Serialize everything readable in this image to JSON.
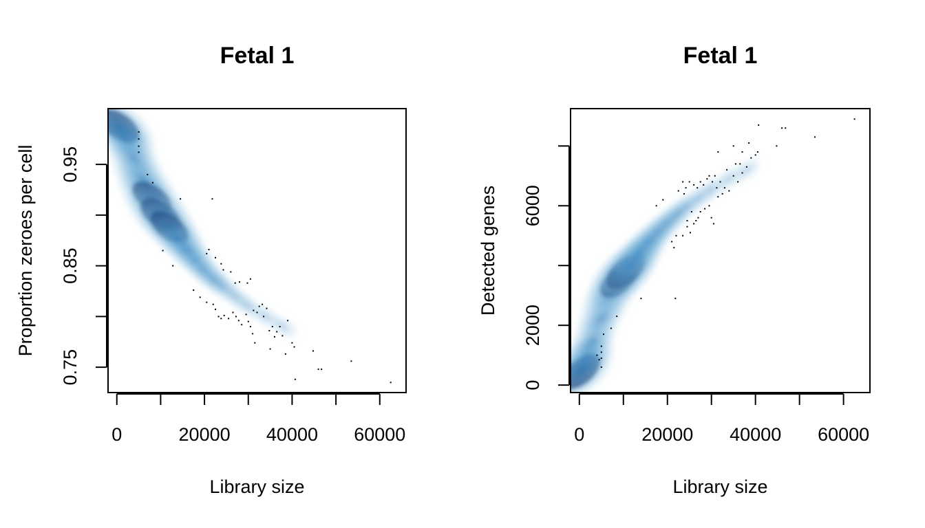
{
  "colors": {
    "density_dark": "#08306b",
    "density_mid": "#2171b5",
    "density_light": "#c6dbef",
    "points": "#000000",
    "axis": "#000000"
  },
  "chart_data": [
    {
      "type": "scatter",
      "style": "smoothScatter",
      "title": "Fetal 1",
      "xlabel": "Library size",
      "ylabel": "Proportion zeroes per cell",
      "xlim": [
        -2000,
        66000
      ],
      "ylim": [
        0.725,
        1.005
      ],
      "xticks": [
        0,
        10000,
        20000,
        30000,
        40000,
        50000,
        60000
      ],
      "xtick_labels": [
        "0",
        "",
        "20000",
        "",
        "40000",
        "",
        "60000"
      ],
      "yticks": [
        0.75,
        0.8,
        0.85,
        0.9,
        0.95
      ],
      "ytick_labels": [
        "0.75",
        "",
        "0.85",
        "",
        "0.95"
      ],
      "density": [
        {
          "x": 500,
          "y": 0.988,
          "w": 1.0
        },
        {
          "x": 2000,
          "y": 0.975,
          "w": 0.8
        },
        {
          "x": 4000,
          "y": 0.955,
          "w": 0.7
        },
        {
          "x": 6000,
          "y": 0.935,
          "w": 0.8
        },
        {
          "x": 8000,
          "y": 0.917,
          "w": 0.95
        },
        {
          "x": 10000,
          "y": 0.9,
          "w": 1.0
        },
        {
          "x": 12000,
          "y": 0.888,
          "w": 0.9
        },
        {
          "x": 14000,
          "y": 0.876,
          "w": 0.7
        },
        {
          "x": 16000,
          "y": 0.865,
          "w": 0.55
        },
        {
          "x": 18000,
          "y": 0.855,
          "w": 0.45
        },
        {
          "x": 20000,
          "y": 0.845,
          "w": 0.35
        },
        {
          "x": 22000,
          "y": 0.837,
          "w": 0.28
        },
        {
          "x": 24000,
          "y": 0.83,
          "w": 0.22
        },
        {
          "x": 27000,
          "y": 0.82,
          "w": 0.15
        },
        {
          "x": 30000,
          "y": 0.81,
          "w": 0.1
        },
        {
          "x": 34000,
          "y": 0.8,
          "w": 0.07
        },
        {
          "x": 38000,
          "y": 0.79,
          "w": 0.05
        }
      ],
      "points": [
        {
          "x": 5000,
          "y": 0.982
        },
        {
          "x": 5000,
          "y": 0.975
        },
        {
          "x": 5000,
          "y": 0.968
        },
        {
          "x": 5000,
          "y": 0.962
        },
        {
          "x": 7000,
          "y": 0.94
        },
        {
          "x": 8200,
          "y": 0.932
        },
        {
          "x": 14500,
          "y": 0.916
        },
        {
          "x": 21800,
          "y": 0.916
        },
        {
          "x": 10500,
          "y": 0.865
        },
        {
          "x": 12800,
          "y": 0.85
        },
        {
          "x": 20500,
          "y": 0.862
        },
        {
          "x": 21000,
          "y": 0.866
        },
        {
          "x": 22500,
          "y": 0.858
        },
        {
          "x": 23800,
          "y": 0.852
        },
        {
          "x": 24300,
          "y": 0.846
        },
        {
          "x": 26000,
          "y": 0.844
        },
        {
          "x": 27000,
          "y": 0.833
        },
        {
          "x": 28000,
          "y": 0.834
        },
        {
          "x": 29800,
          "y": 0.833
        },
        {
          "x": 30500,
          "y": 0.837
        },
        {
          "x": 17500,
          "y": 0.826
        },
        {
          "x": 19000,
          "y": 0.819
        },
        {
          "x": 20500,
          "y": 0.814
        },
        {
          "x": 22000,
          "y": 0.812
        },
        {
          "x": 22500,
          "y": 0.807
        },
        {
          "x": 23200,
          "y": 0.8
        },
        {
          "x": 23800,
          "y": 0.798
        },
        {
          "x": 24500,
          "y": 0.801
        },
        {
          "x": 25500,
          "y": 0.798
        },
        {
          "x": 26500,
          "y": 0.804
        },
        {
          "x": 27200,
          "y": 0.8
        },
        {
          "x": 27800,
          "y": 0.796
        },
        {
          "x": 28500,
          "y": 0.792
        },
        {
          "x": 29500,
          "y": 0.802
        },
        {
          "x": 30000,
          "y": 0.795
        },
        {
          "x": 30500,
          "y": 0.79
        },
        {
          "x": 31200,
          "y": 0.806
        },
        {
          "x": 32000,
          "y": 0.804
        },
        {
          "x": 32500,
          "y": 0.81
        },
        {
          "x": 33200,
          "y": 0.812
        },
        {
          "x": 33500,
          "y": 0.8
        },
        {
          "x": 34200,
          "y": 0.808
        },
        {
          "x": 34800,
          "y": 0.786
        },
        {
          "x": 35500,
          "y": 0.79
        },
        {
          "x": 36000,
          "y": 0.78
        },
        {
          "x": 36500,
          "y": 0.785
        },
        {
          "x": 37200,
          "y": 0.79
        },
        {
          "x": 37800,
          "y": 0.781
        },
        {
          "x": 39000,
          "y": 0.796
        },
        {
          "x": 31000,
          "y": 0.783
        },
        {
          "x": 31500,
          "y": 0.774
        },
        {
          "x": 35000,
          "y": 0.768
        },
        {
          "x": 38500,
          "y": 0.763
        },
        {
          "x": 40000,
          "y": 0.774
        },
        {
          "x": 40500,
          "y": 0.77
        },
        {
          "x": 44800,
          "y": 0.766
        },
        {
          "x": 46000,
          "y": 0.748
        },
        {
          "x": 46700,
          "y": 0.748
        },
        {
          "x": 53500,
          "y": 0.756
        },
        {
          "x": 40700,
          "y": 0.738
        },
        {
          "x": 62500,
          "y": 0.735
        }
      ]
    },
    {
      "type": "scatter",
      "style": "smoothScatter",
      "title": "Fetal 1",
      "xlabel": "Library size",
      "ylabel": "Detected genes",
      "xlim": [
        -2000,
        66000
      ],
      "ylim": [
        -250,
        9250
      ],
      "xticks": [
        0,
        10000,
        20000,
        30000,
        40000,
        50000,
        60000
      ],
      "xtick_labels": [
        "0",
        "",
        "20000",
        "",
        "40000",
        "",
        "60000"
      ],
      "yticks": [
        0,
        2000,
        4000,
        6000,
        8000
      ],
      "ytick_labels": [
        "0",
        "2000",
        "",
        "6000",
        ""
      ],
      "density": [
        {
          "x": 300,
          "y": 450,
          "w": 1.0
        },
        {
          "x": 1500,
          "y": 900,
          "w": 0.75
        },
        {
          "x": 3000,
          "y": 1500,
          "w": 0.6
        },
        {
          "x": 5000,
          "y": 2250,
          "w": 0.65
        },
        {
          "x": 7000,
          "y": 3000,
          "w": 0.8
        },
        {
          "x": 9000,
          "y": 3500,
          "w": 0.95
        },
        {
          "x": 10500,
          "y": 3800,
          "w": 1.0
        },
        {
          "x": 12000,
          "y": 4100,
          "w": 0.85
        },
        {
          "x": 14000,
          "y": 4500,
          "w": 0.65
        },
        {
          "x": 16000,
          "y": 4850,
          "w": 0.5
        },
        {
          "x": 18000,
          "y": 5150,
          "w": 0.4
        },
        {
          "x": 20000,
          "y": 5450,
          "w": 0.32
        },
        {
          "x": 22000,
          "y": 5700,
          "w": 0.25
        },
        {
          "x": 24000,
          "y": 5950,
          "w": 0.2
        },
        {
          "x": 27000,
          "y": 6250,
          "w": 0.15
        },
        {
          "x": 30000,
          "y": 6550,
          "w": 0.1
        },
        {
          "x": 34000,
          "y": 6900,
          "w": 0.07
        },
        {
          "x": 38000,
          "y": 7200,
          "w": 0.05
        }
      ],
      "points": [
        {
          "x": 4000,
          "y": 1000
        },
        {
          "x": 4500,
          "y": 850
        },
        {
          "x": 5000,
          "y": 1300
        },
        {
          "x": 5000,
          "y": 1100
        },
        {
          "x": 5000,
          "y": 900
        },
        {
          "x": 5000,
          "y": 600
        },
        {
          "x": 5500,
          "y": 1700
        },
        {
          "x": 7200,
          "y": 1900
        },
        {
          "x": 8500,
          "y": 2300
        },
        {
          "x": 14000,
          "y": 2900
        },
        {
          "x": 21800,
          "y": 2900
        },
        {
          "x": 17500,
          "y": 6000
        },
        {
          "x": 19000,
          "y": 6200
        },
        {
          "x": 21000,
          "y": 4800
        },
        {
          "x": 21500,
          "y": 4600
        },
        {
          "x": 22500,
          "y": 6500
        },
        {
          "x": 23500,
          "y": 6800
        },
        {
          "x": 23800,
          "y": 6400
        },
        {
          "x": 24200,
          "y": 6600
        },
        {
          "x": 25000,
          "y": 6800
        },
        {
          "x": 26000,
          "y": 6700
        },
        {
          "x": 26800,
          "y": 6600
        },
        {
          "x": 27500,
          "y": 6800
        },
        {
          "x": 28200,
          "y": 6700
        },
        {
          "x": 29000,
          "y": 6900
        },
        {
          "x": 29500,
          "y": 7000
        },
        {
          "x": 30200,
          "y": 6800
        },
        {
          "x": 30800,
          "y": 7000
        },
        {
          "x": 31200,
          "y": 6600
        },
        {
          "x": 32000,
          "y": 6800
        },
        {
          "x": 32500,
          "y": 6400
        },
        {
          "x": 33000,
          "y": 6600
        },
        {
          "x": 33500,
          "y": 7200
        },
        {
          "x": 34000,
          "y": 6500
        },
        {
          "x": 35000,
          "y": 7000
        },
        {
          "x": 35500,
          "y": 7400
        },
        {
          "x": 36000,
          "y": 6800
        },
        {
          "x": 36500,
          "y": 7400
        },
        {
          "x": 37000,
          "y": 7100
        },
        {
          "x": 38000,
          "y": 7300
        },
        {
          "x": 39000,
          "y": 7600
        },
        {
          "x": 31500,
          "y": 7800
        },
        {
          "x": 35000,
          "y": 8000
        },
        {
          "x": 37000,
          "y": 7800
        },
        {
          "x": 38500,
          "y": 8100
        },
        {
          "x": 40000,
          "y": 7700
        },
        {
          "x": 40500,
          "y": 7800
        },
        {
          "x": 44800,
          "y": 8000
        },
        {
          "x": 46000,
          "y": 8600
        },
        {
          "x": 46800,
          "y": 8600
        },
        {
          "x": 53500,
          "y": 8300
        },
        {
          "x": 40700,
          "y": 8700
        },
        {
          "x": 62500,
          "y": 8900
        },
        {
          "x": 24500,
          "y": 5500
        },
        {
          "x": 25500,
          "y": 5800
        },
        {
          "x": 26500,
          "y": 5500
        },
        {
          "x": 27500,
          "y": 5800
        },
        {
          "x": 28500,
          "y": 5900
        },
        {
          "x": 29500,
          "y": 6000
        },
        {
          "x": 30000,
          "y": 5600
        },
        {
          "x": 23500,
          "y": 5000
        },
        {
          "x": 24500,
          "y": 5300
        },
        {
          "x": 25200,
          "y": 5100
        },
        {
          "x": 27000,
          "y": 5600
        },
        {
          "x": 30500,
          "y": 5400
        },
        {
          "x": 22000,
          "y": 5000
        },
        {
          "x": 26000,
          "y": 5400
        },
        {
          "x": 31500,
          "y": 6300
        }
      ]
    }
  ]
}
